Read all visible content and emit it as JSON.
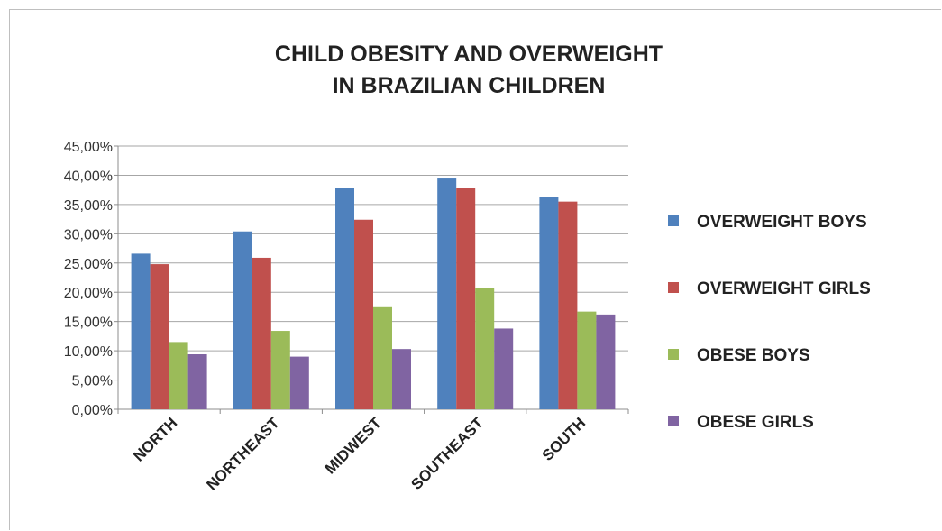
{
  "chart_data": {
    "type": "bar",
    "title": [
      "CHILD OBESITY AND OVERWEIGHT",
      "IN BRAZILIAN CHILDREN"
    ],
    "categories": [
      "NORTH",
      "NORTHEAST",
      "MIDWEST",
      "SOUTHEAST",
      "SOUTH"
    ],
    "series": [
      {
        "name": "OVERWEIGHT BOYS",
        "color": "#4f81bd",
        "values": [
          26.6,
          30.4,
          37.8,
          39.6,
          36.3
        ]
      },
      {
        "name": "OVERWEIGHT GIRLS",
        "color": "#c0504d",
        "values": [
          24.8,
          25.9,
          32.4,
          37.8,
          35.5
        ]
      },
      {
        "name": "OBESE BOYS",
        "color": "#9bbb59",
        "values": [
          11.5,
          13.4,
          17.6,
          20.7,
          16.7
        ]
      },
      {
        "name": "OBESE GIRLS",
        "color": "#8064a2",
        "values": [
          9.4,
          9.0,
          10.3,
          13.8,
          16.2
        ]
      }
    ],
    "yticks": [
      "0,00%",
      "5,00%",
      "10,00%",
      "15,00%",
      "20,00%",
      "25,00%",
      "30,00%",
      "35,00%",
      "40,00%",
      "45,00%"
    ],
    "ylim": [
      0,
      45
    ],
    "grid": true,
    "legend_position": "right"
  }
}
